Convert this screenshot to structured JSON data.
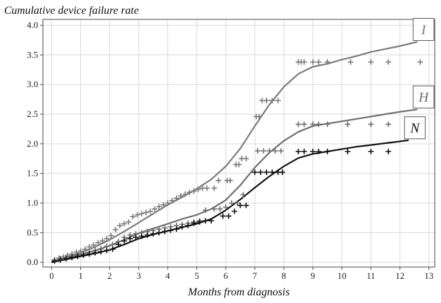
{
  "chart_data": {
    "type": "line",
    "title": "",
    "ylabel": "Cumulative device failure rate",
    "xlabel": "Months from diagnosis",
    "xlim": [
      -0.3,
      13.2
    ],
    "ylim": [
      -0.08,
      4.1
    ],
    "xticks": [
      0,
      1,
      2,
      3,
      4,
      5,
      6,
      7,
      8,
      9,
      10,
      11,
      12,
      13
    ],
    "yticks": [
      0.0,
      0.5,
      1.0,
      1.5,
      2.0,
      2.5,
      3.0,
      3.5,
      4.0
    ],
    "ytick_labels": [
      "0.0",
      "0.5",
      "1.0",
      "1.5",
      "2.0",
      "2.5",
      "3.0",
      "3.5",
      "4.0"
    ],
    "grid": true,
    "series": [
      {
        "name": "I",
        "color": "#7a7a7a",
        "curve": {
          "x": [
            0,
            0.5,
            1,
            1.5,
            2,
            2.5,
            3,
            3.5,
            4,
            4.5,
            5,
            5.5,
            6,
            6.5,
            7,
            7.5,
            8,
            8.5,
            9,
            9.5,
            10,
            10.5,
            11,
            11.5,
            12,
            12.6
          ],
          "y": [
            0,
            0.08,
            0.16,
            0.26,
            0.38,
            0.52,
            0.67,
            0.82,
            0.97,
            1.1,
            1.24,
            1.4,
            1.62,
            1.92,
            2.3,
            2.66,
            2.96,
            3.18,
            3.3,
            3.35,
            3.42,
            3.48,
            3.55,
            3.6,
            3.65,
            3.72
          ]
        },
        "censor": {
          "x": [
            0.1,
            0.25,
            0.4,
            0.55,
            0.7,
            0.85,
            1.0,
            1.15,
            1.3,
            1.45,
            1.6,
            1.75,
            1.9,
            2.05,
            2.2,
            2.35,
            2.5,
            2.65,
            2.8,
            2.95,
            3.1,
            3.25,
            3.4,
            3.55,
            3.7,
            3.85,
            4.0,
            4.15,
            4.3,
            4.45,
            4.6,
            4.75,
            4.9,
            5.05,
            5.2,
            5.35,
            5.6,
            5.75,
            6.05,
            6.15,
            6.35,
            6.45,
            6.55,
            6.7,
            7.05,
            7.15,
            7.25,
            7.4,
            7.6,
            7.8,
            8.5,
            8.6,
            8.7,
            9.0,
            9.2,
            9.5,
            10.3,
            11.0,
            11.6,
            12.7
          ],
          "y": [
            0.04,
            0.07,
            0.09,
            0.12,
            0.14,
            0.17,
            0.19,
            0.22,
            0.26,
            0.29,
            0.33,
            0.36,
            0.4,
            0.45,
            0.55,
            0.62,
            0.65,
            0.68,
            0.77,
            0.8,
            0.82,
            0.84,
            0.86,
            0.9,
            0.94,
            0.97,
            1.0,
            1.04,
            1.08,
            1.12,
            1.15,
            1.18,
            1.2,
            1.23,
            1.25,
            1.25,
            1.25,
            1.38,
            1.38,
            1.38,
            1.65,
            1.65,
            1.75,
            1.75,
            2.46,
            2.46,
            2.73,
            2.73,
            2.73,
            2.73,
            3.38,
            3.38,
            3.38,
            3.38,
            3.38,
            3.38,
            3.38,
            3.38,
            3.38,
            3.38
          ]
        }
      },
      {
        "name": "H",
        "color": "#6e6e6e",
        "curve": {
          "x": [
            0,
            0.5,
            1,
            1.5,
            2,
            2.5,
            3,
            3.5,
            4,
            4.5,
            5,
            5.5,
            6,
            6.5,
            7,
            7.5,
            8,
            8.5,
            9,
            9.5,
            10,
            10.5,
            11,
            11.5,
            12,
            12.6
          ],
          "y": [
            0,
            0.07,
            0.13,
            0.2,
            0.28,
            0.38,
            0.49,
            0.57,
            0.65,
            0.73,
            0.8,
            0.9,
            1.05,
            1.3,
            1.6,
            1.85,
            2.05,
            2.2,
            2.3,
            2.34,
            2.38,
            2.42,
            2.46,
            2.5,
            2.54,
            2.58
          ]
        },
        "censor": {
          "x": [
            0.1,
            0.3,
            0.5,
            0.7,
            0.9,
            1.1,
            1.3,
            1.5,
            1.7,
            1.9,
            2.1,
            2.3,
            2.5,
            2.7,
            2.9,
            3.1,
            3.3,
            3.5,
            3.7,
            3.9,
            4.1,
            4.3,
            4.5,
            4.7,
            4.9,
            5.1,
            5.3,
            5.6,
            5.8,
            6.0,
            6.2,
            6.4,
            6.6,
            7.1,
            7.3,
            7.5,
            7.7,
            7.9,
            8.5,
            8.7,
            9.0,
            9.2,
            9.5,
            10.2,
            11.0,
            11.6,
            12.7
          ],
          "y": [
            0.04,
            0.06,
            0.08,
            0.1,
            0.12,
            0.14,
            0.17,
            0.2,
            0.23,
            0.27,
            0.3,
            0.35,
            0.42,
            0.46,
            0.48,
            0.5,
            0.52,
            0.54,
            0.56,
            0.58,
            0.6,
            0.62,
            0.64,
            0.66,
            0.68,
            0.7,
            0.88,
            0.9,
            0.9,
            0.93,
            1.0,
            1.0,
            1.14,
            1.88,
            1.88,
            1.88,
            1.88,
            1.88,
            2.33,
            2.33,
            2.33,
            2.33,
            2.33,
            2.33,
            2.33,
            2.33,
            2.33
          ]
        }
      },
      {
        "name": "N",
        "color": "#111111",
        "curve": {
          "x": [
            0,
            0.5,
            1,
            1.5,
            2,
            2.5,
            3,
            3.5,
            4,
            4.5,
            5,
            5.5,
            6,
            6.5,
            7,
            7.5,
            8,
            8.5,
            9,
            9.5,
            10,
            10.5,
            11,
            11.5,
            12,
            12.3
          ],
          "y": [
            0,
            0.05,
            0.1,
            0.15,
            0.21,
            0.3,
            0.4,
            0.47,
            0.53,
            0.59,
            0.65,
            0.73,
            0.88,
            1.06,
            1.26,
            1.45,
            1.62,
            1.76,
            1.83,
            1.87,
            1.91,
            1.95,
            1.98,
            2.01,
            2.04,
            2.06
          ]
        },
        "censor": {
          "x": [
            0.1,
            0.3,
            0.5,
            0.7,
            0.9,
            1.1,
            1.3,
            1.5,
            1.7,
            1.9,
            2.1,
            2.3,
            2.5,
            2.7,
            2.9,
            3.1,
            3.3,
            3.5,
            3.7,
            3.9,
            4.1,
            4.3,
            4.5,
            4.7,
            4.9,
            5.1,
            5.3,
            5.5,
            5.9,
            6.1,
            6.3,
            6.5,
            6.7,
            7.0,
            7.2,
            7.4,
            7.6,
            7.8,
            7.95,
            8.5,
            8.7,
            9.0,
            9.2,
            9.5,
            10.2,
            11.0,
            11.6
          ],
          "y": [
            0.02,
            0.04,
            0.06,
            0.08,
            0.1,
            0.12,
            0.14,
            0.16,
            0.18,
            0.2,
            0.22,
            0.3,
            0.36,
            0.4,
            0.42,
            0.44,
            0.46,
            0.48,
            0.5,
            0.52,
            0.54,
            0.56,
            0.6,
            0.62,
            0.66,
            0.68,
            0.7,
            0.7,
            0.78,
            0.78,
            0.86,
            0.96,
            0.96,
            1.52,
            1.52,
            1.52,
            1.52,
            1.52,
            1.52,
            1.87,
            1.87,
            1.87,
            1.87,
            1.87,
            1.87,
            1.87,
            1.87
          ]
        }
      }
    ],
    "annotations": [
      "I",
      "H",
      "N"
    ]
  }
}
